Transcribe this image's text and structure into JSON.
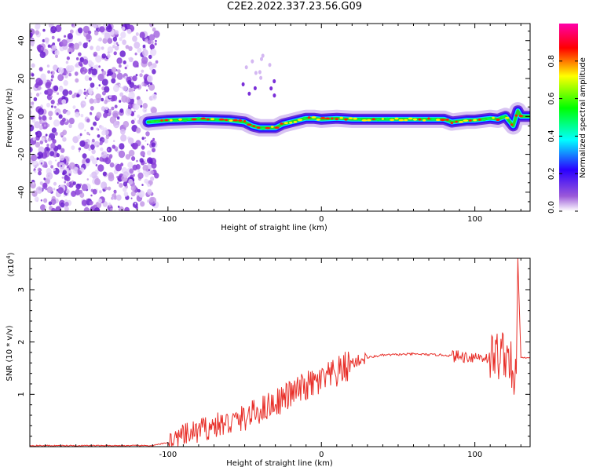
{
  "title": "C2E2.2022.337.23.56.G09",
  "chart_data": [
    {
      "type": "heatmap",
      "xlabel": "Height of straight line (km)",
      "ylabel": "Frequency (Hz)",
      "xlim": [
        -190,
        136
      ],
      "ylim": [
        -50,
        49
      ],
      "x_ticks": [
        -100,
        0,
        100
      ],
      "y_ticks": [
        -40,
        -20,
        0,
        20,
        40
      ],
      "colorbar": {
        "label": "Normalized spectral amplitude",
        "range": [
          0,
          1
        ],
        "ticks": [
          "0.0",
          "0.2",
          "0.4",
          "0.6",
          "0.8"
        ],
        "colors": [
          "#ffffff",
          "#9b59d9",
          "#2b00ff",
          "#00ffff",
          "#00ff00",
          "#ffff00",
          "#ff0000",
          "#ff00aa"
        ]
      },
      "noise_region_x": [
        -190,
        -107
      ],
      "ridge": {
        "x": [
          -113,
          -100,
          -80,
          -60,
          -50,
          -45,
          -40,
          -35,
          -30,
          -25,
          -20,
          -15,
          -10,
          -5,
          0,
          10,
          20,
          40,
          60,
          80,
          85,
          90,
          95,
          100,
          110,
          115,
          120,
          122,
          125,
          128,
          130,
          136
        ],
        "y": [
          -3,
          -2,
          -1.5,
          -2,
          -3,
          -5,
          -6,
          -6,
          -6,
          -4,
          -3,
          -2,
          -1,
          -1,
          -1.5,
          -1,
          -1.5,
          -1.5,
          -1.5,
          -1.5,
          -3,
          -2.5,
          -2,
          -2,
          -1,
          -1.5,
          0,
          -2,
          -5,
          3,
          0,
          0
        ]
      }
    },
    {
      "type": "line",
      "xlabel": "Height of straight line (km)",
      "ylabel": "SNR (10 * v/v)",
      "y_multiplier": "(x10",
      "y_multiplier_exp": "4",
      "xlim": [
        -190,
        136
      ],
      "ylim": [
        0,
        3.6
      ],
      "x_ticks": [
        -100,
        0,
        100
      ],
      "y_ticks": [
        1,
        2,
        3
      ],
      "line_color": "#e8302a",
      "series": [
        {
          "x": [
            -190,
            -110,
            -100,
            -90,
            -80,
            -70,
            -60,
            -50,
            -40,
            -30,
            -20,
            -10,
            0,
            10,
            20,
            30,
            40,
            60,
            80,
            90,
            100,
            110,
            115,
            120,
            123,
            125,
            127,
            128,
            130,
            136
          ],
          "y": [
            0.02,
            0.02,
            0.08,
            0.2,
            0.3,
            0.4,
            0.45,
            0.55,
            0.7,
            0.85,
            1.0,
            1.15,
            1.25,
            1.4,
            1.6,
            1.7,
            1.75,
            1.77,
            1.75,
            1.72,
            1.72,
            1.7,
            1.75,
            1.8,
            1.7,
            1.0,
            1.4,
            3.6,
            1.7,
            1.7
          ]
        }
      ]
    }
  ]
}
